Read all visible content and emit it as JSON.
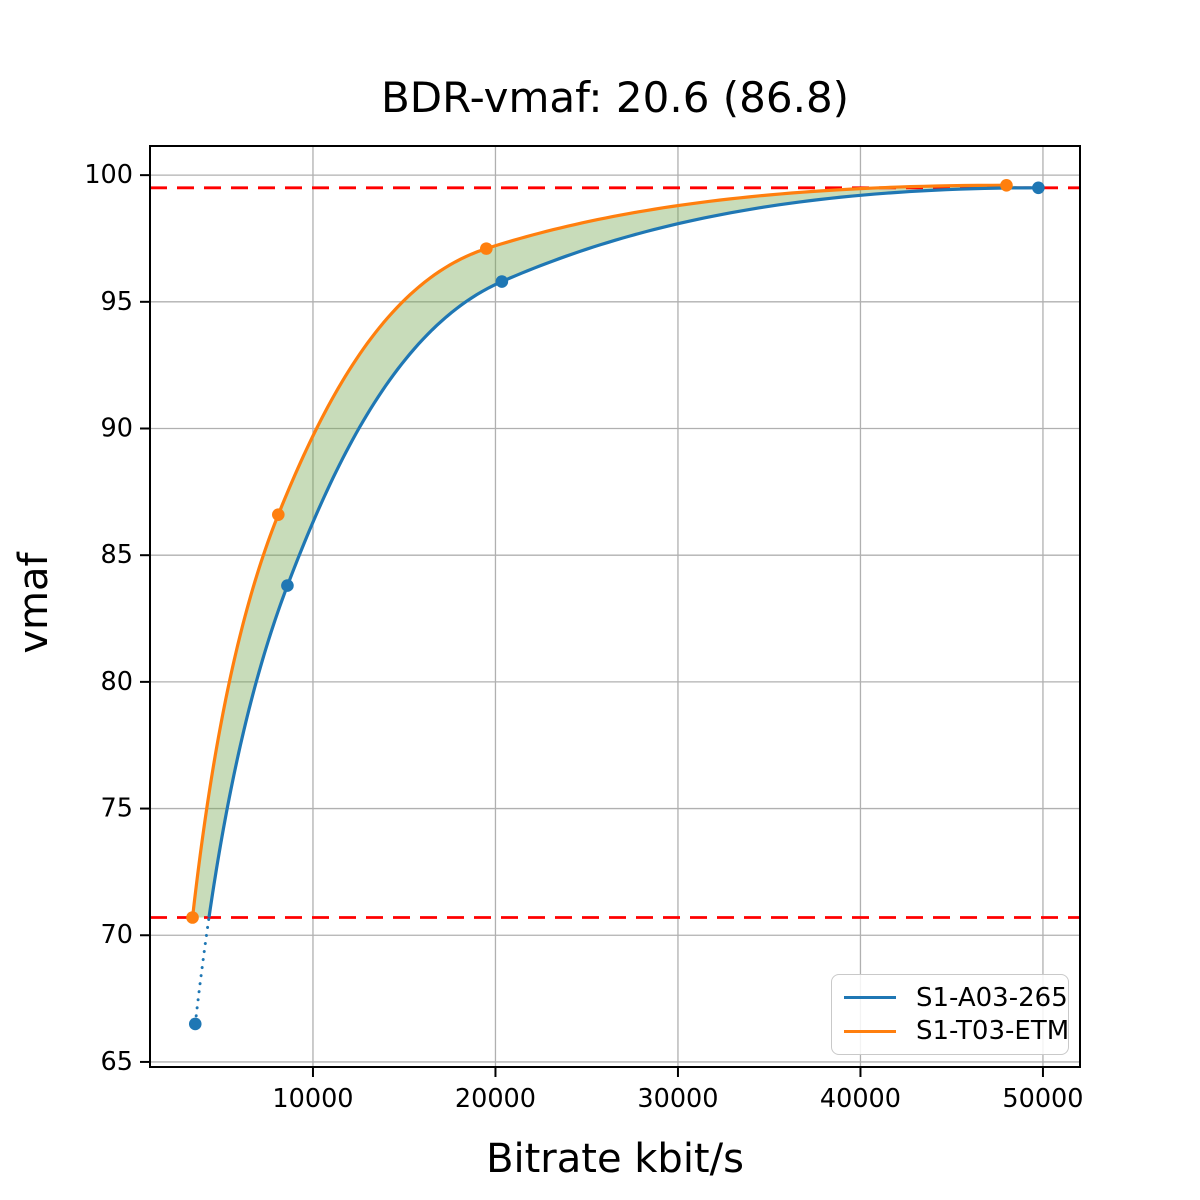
{
  "chart_data": {
    "type": "line",
    "title": "BDR-vmaf: 20.6 (86.8)",
    "xlabel": "Bitrate kbit/s",
    "ylabel": "vmaf",
    "xlim": [
      1070,
      52030
    ],
    "ylim": [
      64.8,
      101.15
    ],
    "x_ticks": [
      10000,
      20000,
      30000,
      40000,
      50000
    ],
    "y_ticks": [
      65,
      70,
      75,
      80,
      85,
      90,
      95,
      100
    ],
    "grid": true,
    "grid_color": "#b0b0b0",
    "legend_position": "lower right",
    "series": [
      {
        "name": "S1-A03-265",
        "color": "#1f77b4",
        "marker": "circle",
        "x": [
          3550,
          8600,
          20350,
          49750
        ],
        "y": [
          66.5,
          83.8,
          95.8,
          99.5
        ],
        "dotted_tail_below_overlap": true
      },
      {
        "name": "S1-T03-ETM",
        "color": "#ff7f0e",
        "marker": "circle",
        "x": [
          3400,
          8100,
          19500,
          48000
        ],
        "y": [
          70.7,
          86.6,
          97.1,
          99.6
        ],
        "dotted_tail_below_overlap": false
      }
    ],
    "overlap_bounds": {
      "style": "dashed",
      "color": "#ff0000",
      "upper_vmaf": 99.5,
      "lower_vmaf": 70.7
    },
    "shade_between": {
      "color": "#75a752",
      "opacity": 0.4
    },
    "bdr": {
      "value": 20.6,
      "mean_vmaf": 86.8
    }
  }
}
